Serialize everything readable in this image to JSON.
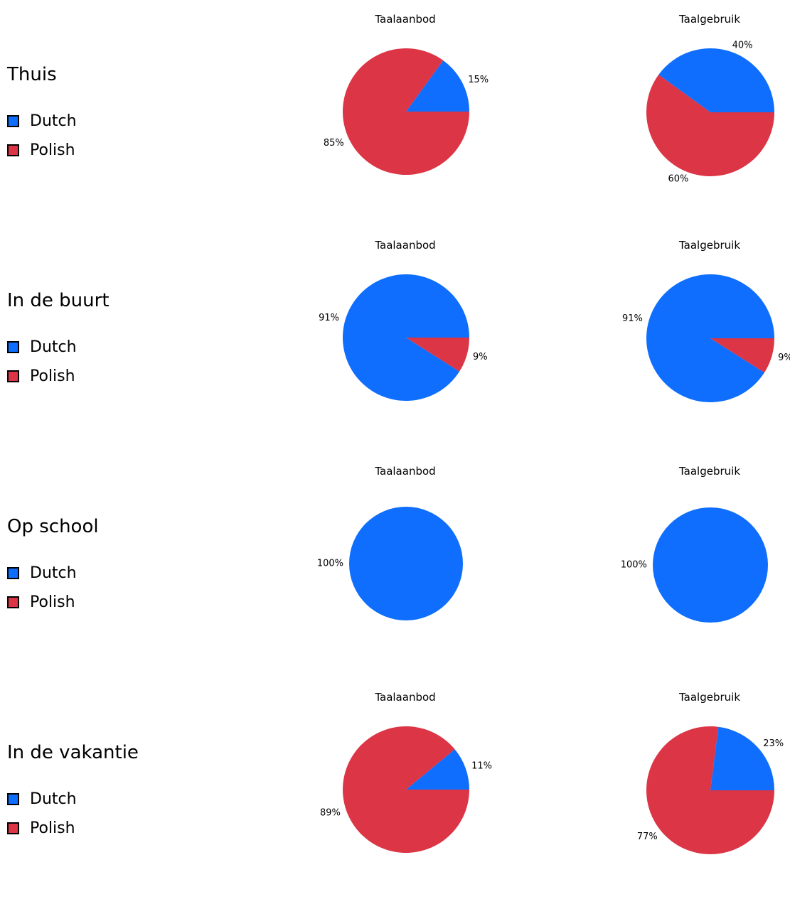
{
  "colors": {
    "Dutch": "#0f6efd",
    "Polish": "#dc3545"
  },
  "legend_labels": [
    "Dutch",
    "Polish"
  ],
  "chart_data": [
    {
      "type": "pie",
      "row": "Thuis",
      "title": "Taalaanbod",
      "slices": [
        {
          "label": "Dutch",
          "value": 15,
          "text": "15%"
        },
        {
          "label": "Polish",
          "value": 85,
          "text": "85%"
        }
      ]
    },
    {
      "type": "pie",
      "row": "Thuis",
      "title": "Taalgebruik",
      "slices": [
        {
          "label": "Dutch",
          "value": 40,
          "text": "40%"
        },
        {
          "label": "Polish",
          "value": 60,
          "text": "60%"
        }
      ]
    },
    {
      "type": "pie",
      "row": "In de buurt",
      "title": "Taalaanbod",
      "slices": [
        {
          "label": "Dutch",
          "value": 91,
          "text": "91%"
        },
        {
          "label": "Polish",
          "value": 9,
          "text": "9%"
        }
      ]
    },
    {
      "type": "pie",
      "row": "In de buurt",
      "title": "Taalgebruik",
      "slices": [
        {
          "label": "Dutch",
          "value": 91,
          "text": "91%"
        },
        {
          "label": "Polish",
          "value": 9,
          "text": "9%"
        }
      ]
    },
    {
      "type": "pie",
      "row": "Op school",
      "title": "Taalaanbod",
      "slices": [
        {
          "label": "Dutch",
          "value": 100,
          "text": "100%"
        }
      ]
    },
    {
      "type": "pie",
      "row": "Op school",
      "title": "Taalgebruik",
      "slices": [
        {
          "label": "Dutch",
          "value": 100,
          "text": "100%"
        }
      ]
    },
    {
      "type": "pie",
      "row": "In de vakantie",
      "title": "Taalaanbod",
      "slices": [
        {
          "label": "Dutch",
          "value": 11,
          "text": "11%"
        },
        {
          "label": "Polish",
          "value": 89,
          "text": "89%"
        }
      ]
    },
    {
      "type": "pie",
      "row": "In de vakantie",
      "title": "Taalgebruik",
      "slices": [
        {
          "label": "Dutch",
          "value": 23,
          "text": "23%"
        },
        {
          "label": "Polish",
          "value": 77,
          "text": "77%"
        }
      ]
    }
  ],
  "rows": [
    "Thuis",
    "In de buurt",
    "Op school",
    "In de vakantie"
  ]
}
